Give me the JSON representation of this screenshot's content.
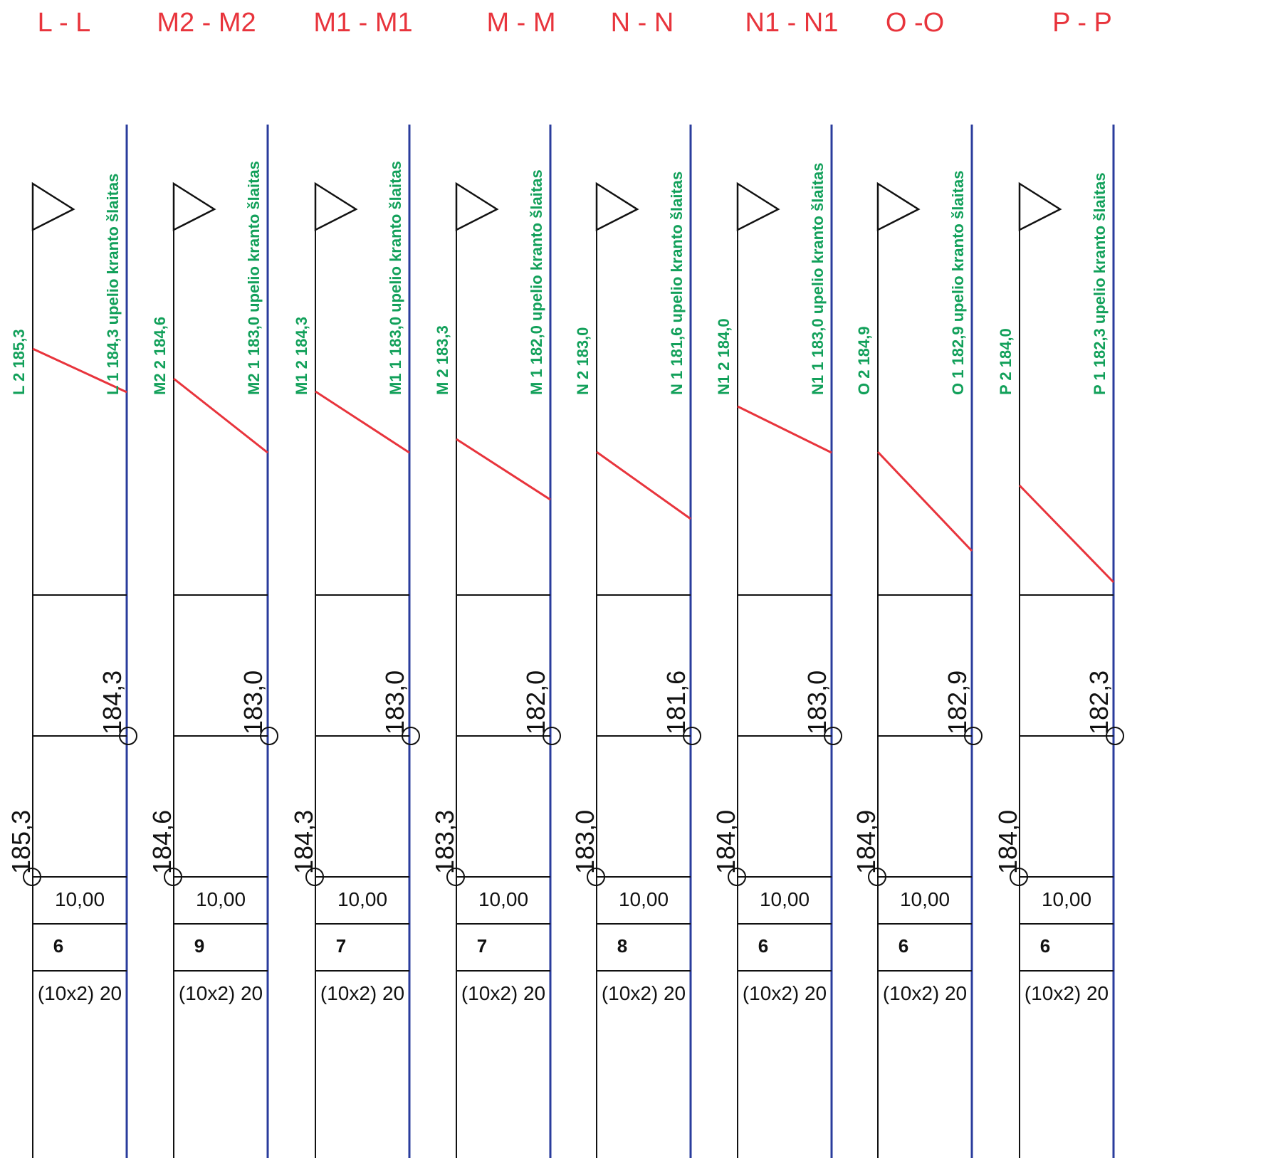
{
  "colors": {
    "title": "#e8343c",
    "label": "#12a05a",
    "ground_line": "#e8343c",
    "right_axis": "#2a3c9c",
    "frame": "#111111"
  },
  "sections": [
    {
      "title": "L - L",
      "left_id": "L 2",
      "left_elev": "185,3",
      "right_id": "L 1",
      "right_elev": "184,3",
      "right_note": "upelio kranto šlaitas",
      "distance": "10,00",
      "count": "6",
      "spec": "(10x2) 20",
      "slope_top": 185.3,
      "slope_bottom": 184.3
    },
    {
      "title": "M2 - M2",
      "left_id": "M2 2",
      "left_elev": "184,6",
      "right_id": "M2 1",
      "right_elev": "183,0",
      "right_note": "upelio kranto šlaitas",
      "distance": "10,00",
      "count": "9",
      "spec": "(10x2) 20",
      "slope_top": 184.6,
      "slope_bottom": 183.0
    },
    {
      "title": "M1 - M1",
      "left_id": "M1 2",
      "left_elev": "184,3",
      "right_id": "M1 1",
      "right_elev": "183,0",
      "right_note": "upelio kranto šlaitas",
      "distance": "10,00",
      "count": "7",
      "spec": "(10x2) 20",
      "slope_top": 184.3,
      "slope_bottom": 183.0
    },
    {
      "title": "M - M",
      "left_id": "M 2",
      "left_elev": "183,3",
      "right_id": "M 1",
      "right_elev": "182,0",
      "right_note": "upelio kranto šlaitas",
      "distance": "10,00",
      "count": "7",
      "spec": "(10x2) 20",
      "slope_top": 183.3,
      "slope_bottom": 182.0
    },
    {
      "title": "N - N",
      "left_id": "N 2",
      "left_elev": "183,0",
      "right_id": "N 1",
      "right_elev": "181,6",
      "right_note": "upelio kranto šlaitas",
      "distance": "10,00",
      "count": "8",
      "spec": "(10x2) 20",
      "slope_top": 183.0,
      "slope_bottom": 181.6
    },
    {
      "title": "N1 - N1",
      "left_id": "N1 2",
      "left_elev": "184,0",
      "right_id": "N1 1",
      "right_elev": "183,0",
      "right_note": "upelio kranto šlaitas",
      "distance": "10,00",
      "count": "6",
      "spec": "(10x2) 20",
      "slope_top": 184.0,
      "slope_bottom": 183.0
    },
    {
      "title": "O -O",
      "left_id": "O 2",
      "left_elev": "184,9",
      "right_id": "O 1",
      "right_elev": "182,9",
      "right_note": "upelio kranto šlaitas",
      "distance": "10,00",
      "count": "6",
      "spec": "(10x2) 20",
      "slope_top": 184.9,
      "slope_bottom": 182.9
    },
    {
      "title": "P - P",
      "left_id": "P 2",
      "left_elev": "184,0",
      "right_id": "P 1",
      "right_elev": "182,3",
      "right_note": "upelio kranto šlaitas",
      "distance": "10,00",
      "count": "6",
      "spec": "(10x2) 20",
      "slope_top": 184.0,
      "slope_bottom": 182.3
    }
  ]
}
